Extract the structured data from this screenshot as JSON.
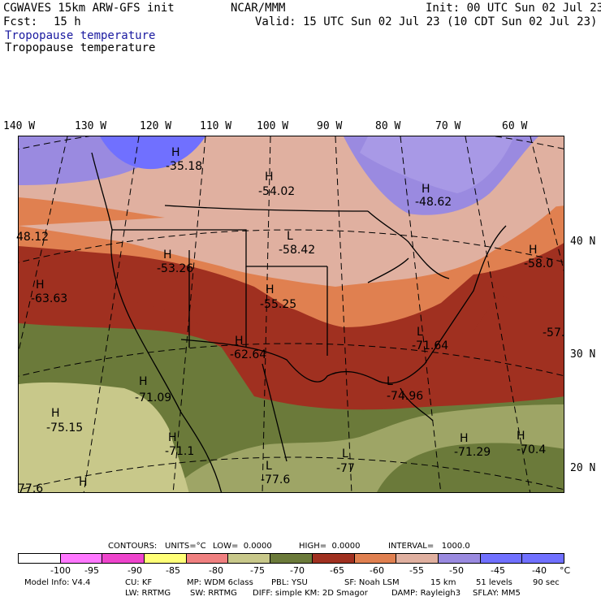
{
  "header": {
    "model": "CGWAVES 15km ARW-GFS init",
    "org": "NCAR/MMM",
    "init": "Init: 00 UTC Sun 02 Jul 23",
    "fcst_label": "Fcst:",
    "fcst_value": "15 h",
    "valid": "Valid: 15 UTC Sun 02 Jul 23 (10 CDT Sun 02 Jul 23)",
    "field_title": "Tropopause temperature",
    "field_subtitle": "Tropopause temperature"
  },
  "colors": {
    "title_blue": "#1a1aa0",
    "levels": [
      "#ffffff",
      "#ff77ff",
      "#ee44cc",
      "#ffff77",
      "#f08080",
      "#c8c88a",
      "#6b7a3a",
      "#a03020",
      "#e08050",
      "#e0b0a0",
      "#9a8ae0",
      "#7070ff",
      "#7070ff"
    ]
  },
  "map": {
    "lon_labels": [
      "140 W",
      "130 W",
      "120 W",
      "110 W",
      "100 W",
      "90 W",
      "80 W",
      "70 W",
      "60 W"
    ],
    "lat_labels": [
      "40 N",
      "30 N",
      "20 N"
    ],
    "marks": [
      {
        "letter": "H",
        "value": "-35.18"
      },
      {
        "letter": "H",
        "value": "-54.02"
      },
      {
        "letter": "H",
        "value": "-48.62"
      },
      {
        "letter": "",
        "value": "48.12"
      },
      {
        "letter": "L",
        "value": "-58.42"
      },
      {
        "letter": "H",
        "value": "-58.0"
      },
      {
        "letter": "H",
        "value": "-53.26"
      },
      {
        "letter": "H",
        "value": "-63.63"
      },
      {
        "letter": "H",
        "value": "-55.25"
      },
      {
        "letter": "",
        "value": "-57."
      },
      {
        "letter": "H",
        "value": "-62.64"
      },
      {
        "letter": "L",
        "value": "-71.64"
      },
      {
        "letter": "H",
        "value": "-71.09"
      },
      {
        "letter": "L",
        "value": "-74.96"
      },
      {
        "letter": "H",
        "value": "-75.15"
      },
      {
        "letter": "H",
        "value": "-71.1"
      },
      {
        "letter": "H",
        "value": "-71.29"
      },
      {
        "letter": "H",
        "value": "-70.4"
      },
      {
        "letter": "L",
        "value": "-77"
      },
      {
        "letter": "L",
        "value": "-77.6"
      },
      {
        "letter": "",
        "value": "77.6"
      },
      {
        "letter": "H",
        "value": ""
      }
    ]
  },
  "contours": {
    "contours_label": "CONTOURS:",
    "units": "UNITS=°C",
    "low": "LOW=  0.0000",
    "high": "HIGH=  0.0000",
    "interval": "INTERVAL=   1000.0"
  },
  "colorbar": {
    "ticks": [
      "-100",
      "-95",
      "-90",
      "-85",
      "-80",
      "-75",
      "-70",
      "-65",
      "-60",
      "-55",
      "-50",
      "-45",
      "-40",
      "°C"
    ]
  },
  "footer": {
    "line1": {
      "model_info": "Model Info: V4.4",
      "cu": "CU: KF",
      "mp": "MP: WDM 6class",
      "pbl": "PBL: YSU",
      "sf": "SF: Noah LSM",
      "dx": "15 km",
      "levels": "51 levels",
      "dt": "90 sec"
    },
    "line2": {
      "lw": "LW: RRTMG",
      "sw": "SW: RRTMG",
      "diff": "DIFF: simple KM: 2D Smagor",
      "damp": "DAMP: Rayleigh3",
      "sflay": "SFLAY: MM5"
    }
  }
}
